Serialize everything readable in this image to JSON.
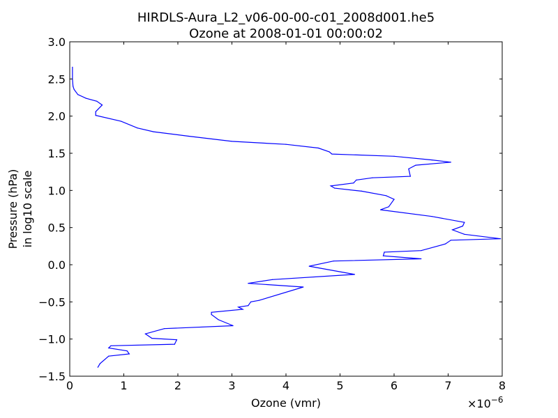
{
  "chart_data": {
    "type": "line",
    "title": "HIRDLS-Aura_L2_v06-00-00-c01_2008d001.he5",
    "subtitle": "Ozone at 2008-01-01 00:00:02",
    "xlabel": "Ozone (vmr)",
    "x_scale_label": "×10",
    "x_scale_exponent": "−6",
    "ylabel_line1": "Pressure (hPa)",
    "ylabel_line2": "in log10 scale",
    "xlim": [
      0,
      8
    ],
    "ylim": [
      -1.5,
      3.0
    ],
    "x_multiplier": 1e-06,
    "x_ticks": [
      0,
      1,
      2,
      3,
      4,
      5,
      6,
      7,
      8
    ],
    "x_tick_labels": [
      "0",
      "1",
      "2",
      "3",
      "4",
      "5",
      "6",
      "7",
      "8"
    ],
    "y_ticks": [
      -1.5,
      -1.0,
      -0.5,
      0.0,
      0.5,
      1.0,
      1.5,
      2.0,
      2.5,
      3.0
    ],
    "y_tick_labels": [
      "−1.5",
      "−1.0",
      "−0.5",
      "0.0",
      "0.5",
      "1.0",
      "1.5",
      "2.0",
      "2.5",
      "3.0"
    ],
    "grid": false,
    "line_color": "#0000ff",
    "series": [
      {
        "x": [
          0.05,
          0.05,
          0.06,
          0.08,
          0.15,
          0.3,
          0.5,
          0.6,
          0.48,
          0.48,
          0.95,
          1.25,
          1.55,
          2.2,
          3.0,
          4.0,
          4.6,
          4.8,
          4.85,
          6.0,
          6.7,
          7.05,
          6.4,
          6.27,
          6.3,
          5.6,
          5.3,
          5.25,
          4.83,
          4.9,
          5.4,
          5.85,
          6.0,
          5.9,
          5.75,
          6.7,
          7.3,
          7.27,
          7.08,
          7.3,
          7.97,
          7.05,
          6.95,
          6.5,
          5.82,
          5.8,
          6.5,
          4.88,
          4.43,
          5.27,
          3.75,
          3.3,
          4.32,
          3.5,
          3.35,
          3.3,
          3.12,
          3.2,
          2.62,
          2.62,
          2.75,
          3.02,
          1.75,
          1.4,
          1.52,
          1.98,
          1.94,
          0.76,
          0.72,
          1.06,
          1.1,
          0.72,
          0.56,
          0.52
        ],
        "y": [
          2.66,
          2.5,
          2.4,
          2.36,
          2.29,
          2.24,
          2.2,
          2.15,
          2.06,
          2.01,
          1.93,
          1.84,
          1.79,
          1.73,
          1.66,
          1.62,
          1.57,
          1.52,
          1.49,
          1.46,
          1.41,
          1.38,
          1.34,
          1.29,
          1.19,
          1.17,
          1.14,
          1.1,
          1.06,
          1.03,
          0.99,
          0.93,
          0.88,
          0.78,
          0.74,
          0.65,
          0.57,
          0.52,
          0.47,
          0.41,
          0.35,
          0.33,
          0.28,
          0.19,
          0.17,
          0.12,
          0.08,
          0.05,
          -0.02,
          -0.13,
          -0.2,
          -0.25,
          -0.3,
          -0.48,
          -0.5,
          -0.55,
          -0.57,
          -0.6,
          -0.64,
          -0.67,
          -0.74,
          -0.82,
          -0.86,
          -0.93,
          -0.99,
          -1.01,
          -1.07,
          -1.09,
          -1.12,
          -1.16,
          -1.2,
          -1.23,
          -1.33,
          -1.38
        ]
      }
    ]
  }
}
